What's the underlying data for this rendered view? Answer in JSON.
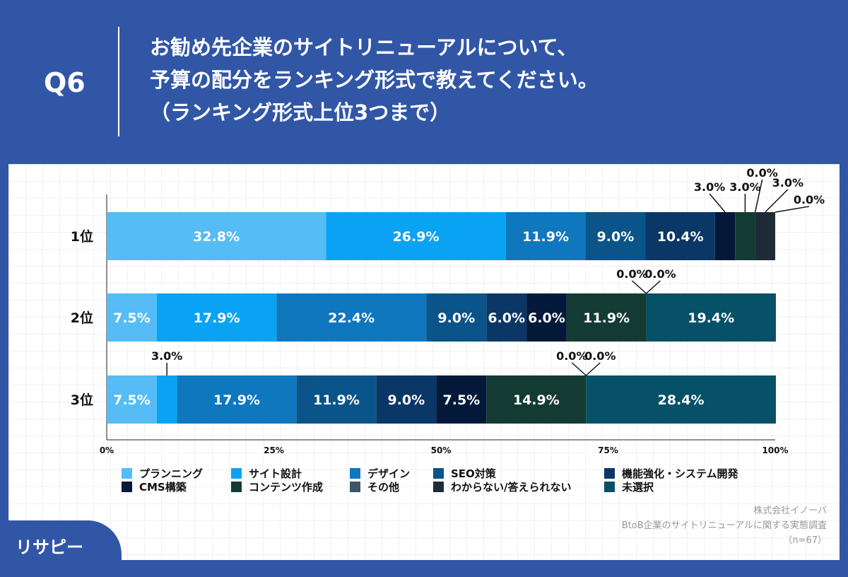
{
  "header": {
    "q": "Q6",
    "title_lines": [
      "お勧め先企業のサイトリニューアルについて、",
      "予算の配分をランキング形式で教えてください。",
      "（ランキング形式上位3つまで）"
    ]
  },
  "chart_data": {
    "type": "bar",
    "orientation": "horizontal",
    "stacked": true,
    "xlim": [
      0,
      100
    ],
    "xticks": [
      "0%",
      "25%",
      "50%",
      "75%",
      "100%"
    ],
    "categories": [
      "1位",
      "2位",
      "3位"
    ],
    "series": [
      {
        "name": "プランニング",
        "color": "#55bcf5",
        "values": [
          32.8,
          7.5,
          7.5
        ]
      },
      {
        "name": "サイト設計",
        "color": "#0aa3f3",
        "values": [
          26.9,
          17.9,
          3.0
        ]
      },
      {
        "name": "デザイン",
        "color": "#0e77be",
        "values": [
          11.9,
          22.4,
          17.9
        ]
      },
      {
        "name": "SEO対策",
        "color": "#0a548a",
        "values": [
          9.0,
          9.0,
          11.9
        ]
      },
      {
        "name": "機能強化・システム開発",
        "color": "#0a3766",
        "values": [
          10.4,
          6.0,
          9.0
        ]
      },
      {
        "name": "CMS構築",
        "color": "#04193a",
        "values": [
          3.0,
          6.0,
          7.5
        ]
      },
      {
        "name": "コンテンツ作成",
        "color": "#133b33",
        "values": [
          3.0,
          11.9,
          14.9
        ]
      },
      {
        "name": "その他",
        "color": "#3d5566",
        "values": [
          0.0,
          0.0,
          0.0
        ]
      },
      {
        "name": "わからない/答えられない",
        "color": "#1f2b36",
        "values": [
          3.0,
          0.0,
          0.0
        ]
      },
      {
        "name": "未選択",
        "color": "#065068",
        "values": [
          0.0,
          19.4,
          28.4
        ]
      }
    ],
    "legend": "bottom"
  },
  "source": {
    "company": "株式会社イノーバ",
    "survey": "BtoB企業のサイトリニューアルに関する実態調査",
    "n": "（n=67）"
  },
  "logo": "リサピー"
}
